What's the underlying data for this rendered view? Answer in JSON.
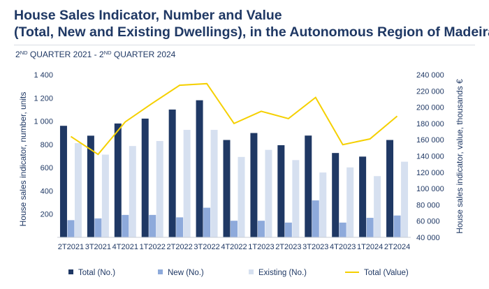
{
  "header": {
    "title_line1": "House Sales Indicator, Number and Value",
    "title_line2": "(Total, New and Existing Dwellings), in the Autonomous Region of Madeira",
    "subtitle_part1": "2",
    "subtitle_sup1": "ND",
    "subtitle_part2": " QUARTER 2021 - 2",
    "subtitle_sup2": "ND",
    "subtitle_part3": " QUARTER 2024"
  },
  "chart_data": {
    "type": "bar",
    "categories": [
      "2T2021",
      "3T2021",
      "4T2021",
      "1T2022",
      "2T2022",
      "3T2022",
      "4T2022",
      "1T2023",
      "2T2023",
      "3T2023",
      "4T2023",
      "1T2024",
      "2T2024"
    ],
    "series": [
      {
        "name": "Total (No.)",
        "type": "bar",
        "axis": "left",
        "color": "#1f3864",
        "values": [
          960,
          875,
          980,
          1022,
          1100,
          1180,
          838,
          898,
          793,
          876,
          726,
          695,
          838
        ]
      },
      {
        "name": "New (No.)",
        "type": "bar",
        "axis": "left",
        "color": "#8eaadb",
        "values": [
          148,
          163,
          193,
          193,
          172,
          255,
          143,
          143,
          127,
          318,
          127,
          168,
          188
        ]
      },
      {
        "name": "Existing (No.)",
        "type": "bar",
        "axis": "left",
        "color": "#d6e0f0",
        "values": [
          811,
          712,
          786,
          829,
          925,
          925,
          692,
          753,
          665,
          558,
          602,
          527,
          651
        ]
      },
      {
        "name": "Total (Value)",
        "type": "line",
        "axis": "right",
        "color": "#f5d000",
        "values": [
          164000,
          142000,
          182000,
          205000,
          227000,
          229000,
          180000,
          195000,
          186000,
          212000,
          154000,
          161000,
          189000
        ]
      }
    ],
    "y_left": {
      "label": "House sales indicator, number, units",
      "min": 0,
      "max": 1400,
      "ticks": [
        200,
        400,
        600,
        800,
        1000,
        1200,
        1400
      ],
      "tick_labels": [
        "200",
        "400",
        "600",
        "800",
        "1 000",
        "1 200",
        "1 400"
      ]
    },
    "y_right": {
      "label": "House sales indicator, value, thousands €",
      "min": 40000,
      "max": 240000,
      "ticks": [
        40000,
        60000,
        80000,
        100000,
        120000,
        140000,
        160000,
        180000,
        200000,
        220000,
        240000
      ],
      "tick_labels": [
        "40 000",
        "60 000",
        "80 000",
        "100 000",
        "120 000",
        "140 000",
        "160 000",
        "180 000",
        "200 000",
        "220 000",
        "240 000"
      ]
    },
    "grid": false,
    "legend_position": "bottom"
  }
}
